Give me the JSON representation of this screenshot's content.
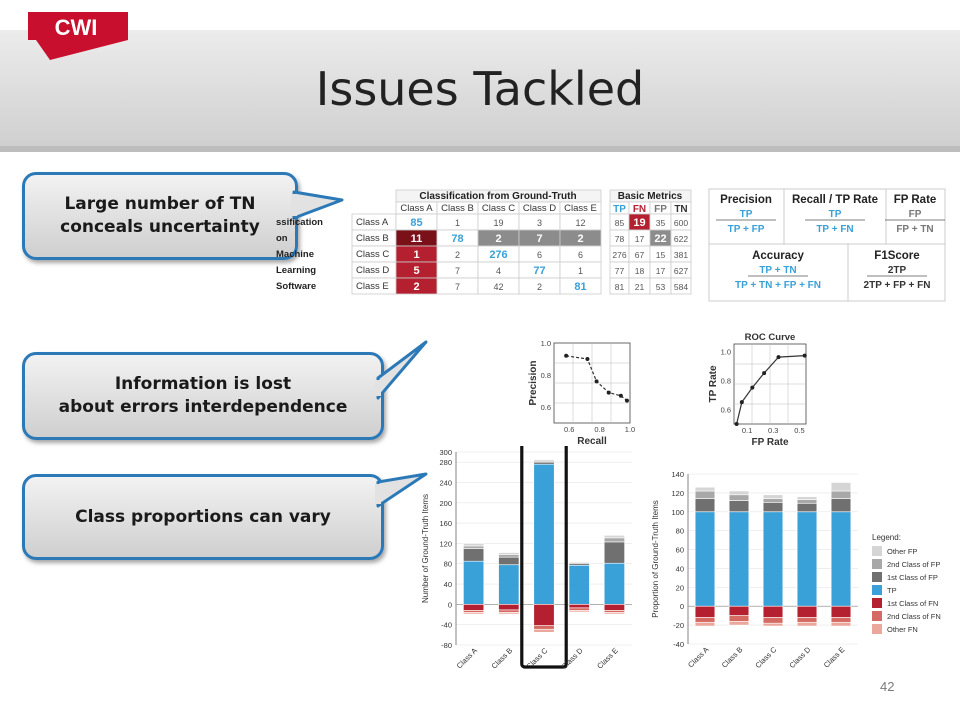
{
  "header": {
    "title": "Issues Tackled",
    "logo_text": "CWI"
  },
  "callouts": [
    {
      "line1": "Large number of TN",
      "line2": "conceals uncertainty"
    },
    {
      "line1": "Information is lost",
      "line2": "about errors interdependence"
    },
    {
      "line1": "Class proportions can vary",
      "line2": ""
    }
  ],
  "confusion_table": {
    "group_header": "Classification from Ground-Truth",
    "columns": [
      "Class A",
      "Class B",
      "Class C",
      "Class D",
      "Class E"
    ],
    "rows": [
      {
        "left": "ssification",
        "label": "Class A",
        "values": [
          "85",
          "1",
          "19",
          "3",
          "12"
        ]
      },
      {
        "left": "on",
        "label": "Class B",
        "values": [
          "11",
          "78",
          "2",
          "7",
          "2"
        ]
      },
      {
        "left": "Machine",
        "label": "Class C",
        "values": [
          "1",
          "2",
          "276",
          "6",
          "6"
        ]
      },
      {
        "left": "Learning",
        "label": "Class D",
        "values": [
          "5",
          "7",
          "4",
          "77",
          "1"
        ]
      },
      {
        "left": "Software",
        "label": "Class E",
        "values": [
          "2",
          "7",
          "42",
          "2",
          "81"
        ]
      }
    ]
  },
  "basic_metrics": {
    "header": "Basic Metrics",
    "columns": [
      "TP",
      "FN",
      "FP",
      "TN"
    ],
    "rows": [
      [
        "85",
        "19",
        "35",
        "600"
      ],
      [
        "78",
        "17",
        "22",
        "622"
      ],
      [
        "276",
        "67",
        "15",
        "381"
      ],
      [
        "77",
        "18",
        "17",
        "627"
      ],
      [
        "81",
        "21",
        "53",
        "584"
      ]
    ]
  },
  "formulas": {
    "precision": {
      "title": "Precision",
      "num": "TP",
      "den": "TP + FP"
    },
    "recall": {
      "title": "Recall / TP Rate",
      "num": "TP",
      "den": "TP + FN"
    },
    "fprate": {
      "title": "FP Rate",
      "num": "FP",
      "den": "FP + TN"
    },
    "accuracy": {
      "title": "Accuracy",
      "num": "TP + TN",
      "den": "TP + TN + FP + FN"
    },
    "f1": {
      "title": "F1Score",
      "num": "2TP",
      "den": "2TP + FP + FN"
    }
  },
  "colors": {
    "accent_blue": "#2c79b8",
    "logo_red": "#c8102e",
    "tp_blue": "#3aa0d8",
    "fn_red": "#b52030"
  },
  "chart_data": [
    {
      "type": "line",
      "title": "",
      "xlabel": "Recall",
      "ylabel": "Precision",
      "x_ticks": [
        "0.6",
        "0.8",
        "1.0"
      ],
      "y_ticks": [
        "0.6",
        "0.8",
        "1.0"
      ],
      "xlim": [
        0.5,
        1.0
      ],
      "ylim": [
        0.5,
        1.0
      ],
      "x": [
        0.58,
        0.72,
        0.78,
        0.86,
        0.94,
        0.98
      ],
      "y": [
        0.92,
        0.9,
        0.76,
        0.69,
        0.67,
        0.64
      ]
    },
    {
      "type": "line",
      "title": "ROC Curve",
      "xlabel": "FP Rate",
      "ylabel": "TP Rate",
      "x_ticks": [
        "0.1",
        "0.3",
        "0.5"
      ],
      "y_ticks": [
        "0.6",
        "0.8",
        "1.0"
      ],
      "xlim": [
        0.0,
        0.55
      ],
      "ylim": [
        0.5,
        1.05
      ],
      "x": [
        0.02,
        0.06,
        0.14,
        0.23,
        0.34,
        0.54
      ],
      "y": [
        0.5,
        0.65,
        0.75,
        0.85,
        0.96,
        0.97
      ]
    },
    {
      "type": "bar",
      "ylabel": "Number of Ground-Truth Items",
      "categories": [
        "Class A",
        "Class B",
        "Class C",
        "Class D",
        "Class E"
      ],
      "ylim": [
        -80,
        300
      ],
      "y_ticks": [
        "300",
        "280",
        "240",
        "200",
        "160",
        "120",
        "80",
        "40",
        "0",
        "-40",
        "-80"
      ],
      "series": [
        {
          "name": "TP",
          "values": [
            85,
            78,
            276,
            77,
            81
          ]
        },
        {
          "name": "1st Class of FP",
          "values": [
            25,
            15,
            4,
            3,
            42
          ]
        },
        {
          "name": "2nd Class of FP",
          "values": [
            5,
            5,
            2,
            2,
            8
          ]
        },
        {
          "name": "Other FP",
          "values": [
            5,
            4,
            3,
            2,
            5
          ]
        },
        {
          "name": "1st Class of FN",
          "values": [
            -12,
            -11,
            -42,
            -7,
            -12
          ]
        },
        {
          "name": "2nd Class of FN",
          "values": [
            -4,
            -5,
            -7,
            -5,
            -4
          ]
        },
        {
          "name": "Other FN",
          "values": [
            -3,
            -3,
            -6,
            -3,
            -3
          ]
        }
      ]
    },
    {
      "type": "bar",
      "ylabel": "Proportion of Ground-Truth Items",
      "categories": [
        "Class A",
        "Class B",
        "Class C",
        "Class D",
        "Class E"
      ],
      "ylim": [
        -40,
        140
      ],
      "y_ticks": [
        "140",
        "120",
        "100",
        "80",
        "60",
        "40",
        "20",
        "0",
        "-20",
        "-40"
      ],
      "legend_title": "Legend:",
      "legend": [
        "Other FP",
        "2nd Class of FP",
        "1st Class of FP",
        "TP",
        "1st Class of FN",
        "2nd Class of FN",
        "Other FN"
      ],
      "series": [
        {
          "name": "TP",
          "values": [
            100,
            100,
            100,
            100,
            100
          ]
        },
        {
          "name": "1st Class of FP",
          "values": [
            14,
            12,
            10,
            9,
            14
          ]
        },
        {
          "name": "2nd Class of FP",
          "values": [
            8,
            6,
            4,
            4,
            8
          ]
        },
        {
          "name": "Other FP",
          "values": [
            4,
            4,
            4,
            3,
            9
          ]
        },
        {
          "name": "1st Class of FN",
          "values": [
            -12,
            -10,
            -12,
            -12,
            -12
          ]
        },
        {
          "name": "2nd Class of FN",
          "values": [
            -5,
            -6,
            -6,
            -5,
            -5
          ]
        },
        {
          "name": "Other FN",
          "values": [
            -4,
            -4,
            -3,
            -4,
            -4
          ]
        }
      ]
    }
  ],
  "footer": {
    "page_number": "42"
  }
}
